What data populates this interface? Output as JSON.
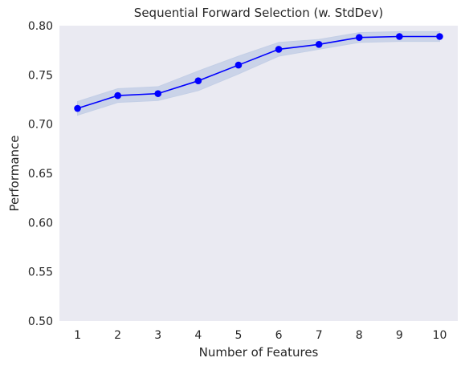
{
  "chart_data": {
    "type": "line",
    "title": "Sequential Forward Selection (w. StdDev)",
    "xlabel": "Number of Features",
    "ylabel": "Performance",
    "x": [
      1,
      2,
      3,
      4,
      5,
      6,
      7,
      8,
      9,
      10
    ],
    "series": [
      {
        "values": [
          0.716,
          0.729,
          0.731,
          0.744,
          0.76,
          0.776,
          0.781,
          0.788,
          0.789,
          0.789
        ],
        "std_lower": [
          0.709,
          0.722,
          0.724,
          0.734,
          0.751,
          0.769,
          0.776,
          0.783,
          0.784,
          0.784
        ],
        "std_upper": [
          0.723,
          0.736,
          0.738,
          0.754,
          0.769,
          0.783,
          0.786,
          0.793,
          0.794,
          0.794
        ],
        "color": "#0000ff",
        "band_color": "#c4cfe6",
        "marker": "circle"
      }
    ],
    "xlim": [
      0.55,
      10.45
    ],
    "ylim": [
      0.5,
      0.8
    ],
    "xticks": [
      "1",
      "2",
      "3",
      "4",
      "5",
      "6",
      "7",
      "8",
      "9",
      "10"
    ],
    "yticks": [
      "0.50",
      "0.55",
      "0.60",
      "0.65",
      "0.70",
      "0.75",
      "0.80"
    ],
    "ytick_values": [
      0.5,
      0.55,
      0.6,
      0.65,
      0.7,
      0.75,
      0.8
    ],
    "grid": false,
    "background": "#eaeaf2"
  }
}
